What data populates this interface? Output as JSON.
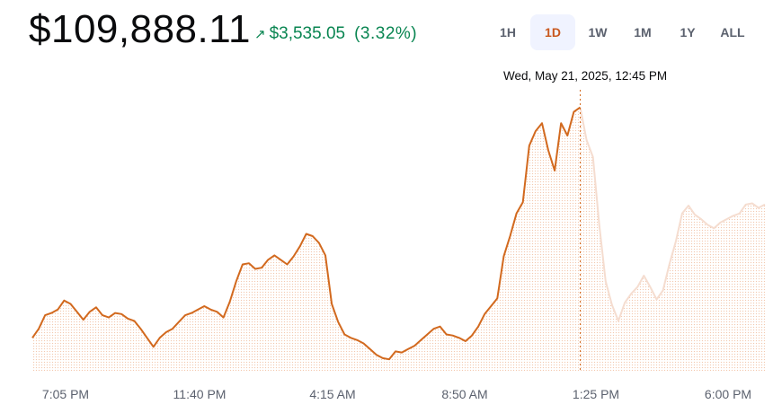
{
  "header": {
    "price": "$109,888.11",
    "change_icon": "arrow-up-right-icon",
    "change_amount": "$3,535.05",
    "change_percent": "(3.32%)",
    "change_color": "#098551"
  },
  "range_tabs": [
    {
      "label": "1H",
      "active": false
    },
    {
      "label": "1D",
      "active": true
    },
    {
      "label": "1W",
      "active": false
    },
    {
      "label": "1M",
      "active": false
    },
    {
      "label": "1Y",
      "active": false
    },
    {
      "label": "ALL",
      "active": false
    }
  ],
  "tooltip": {
    "date": "Wed, May 21, 2025, 12:45 PM"
  },
  "chart_data": {
    "type": "line",
    "x_tick_labels": [
      "7:05 PM",
      "11:40 PM",
      "4:15 AM",
      "8:50 AM",
      "1:25 PM",
      "6:00 PM"
    ],
    "hover_index": 86,
    "line_color": "#d2691e",
    "faded_line_color": "#f5ddd0",
    "fill_dot_color": "#f3c9b0",
    "grid": false,
    "legend": "none",
    "values": [
      30,
      38,
      50,
      52,
      55,
      63,
      60,
      53,
      46,
      53,
      57,
      50,
      48,
      52,
      51,
      47,
      45,
      38,
      30,
      22,
      30,
      35,
      38,
      44,
      50,
      52,
      55,
      58,
      55,
      53,
      48,
      62,
      80,
      95,
      96,
      91,
      92,
      99,
      103,
      99,
      95,
      102,
      111,
      122,
      120,
      114,
      103,
      60,
      44,
      33,
      30,
      28,
      25,
      20,
      15,
      12,
      11,
      18,
      17,
      20,
      23,
      28,
      33,
      38,
      40,
      33,
      32,
      30,
      27,
      32,
      40,
      51,
      58,
      65,
      102,
      120,
      140,
      150,
      200,
      213,
      220,
      196,
      178,
      220,
      209,
      230,
      234,
      205,
      190,
      130,
      80,
      59,
      45,
      61,
      69,
      75,
      85,
      75,
      64,
      72,
      95,
      115,
      140,
      147,
      139,
      135,
      130,
      127,
      132,
      135,
      138,
      140,
      148,
      149,
      145,
      148
    ],
    "ylim": [
      0,
      240
    ]
  }
}
